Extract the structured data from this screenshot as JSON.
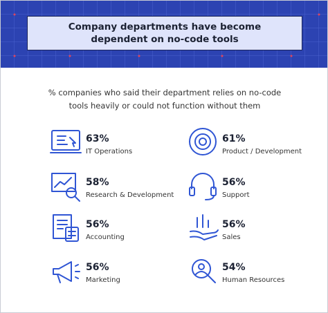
{
  "header": {
    "title": "Company departments have become dependent on no-code tools"
  },
  "subtitle": "% companies who said their department relies on no-code tools heavily or could not function without them",
  "items": [
    {
      "value": "63%",
      "label": "IT Operations"
    },
    {
      "value": "61%",
      "label": "Product / Development"
    },
    {
      "value": "58%",
      "label": "Research & Development"
    },
    {
      "value": "56%",
      "label": "Support"
    },
    {
      "value": "56%",
      "label": "Accounting"
    },
    {
      "value": "56%",
      "label": "Sales"
    },
    {
      "value": "56%",
      "label": "Marketing"
    },
    {
      "value": "54%",
      "label": "Human Resources"
    }
  ]
}
